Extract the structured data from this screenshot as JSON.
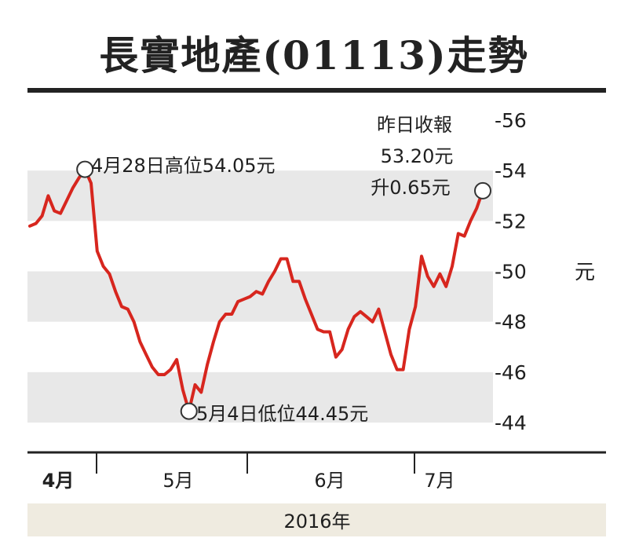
{
  "colors": {
    "line": "#d7261e",
    "band": "#e8e8e8",
    "yearbar": "#efebe0",
    "rule": "#222222"
  },
  "chart_data": {
    "type": "line",
    "title": "長實地產(01113)走勢",
    "ylabel": "元",
    "xlabel": "2016年",
    "ylim": [
      44,
      56
    ],
    "yticks": [
      44,
      46,
      48,
      50,
      52,
      54,
      56
    ],
    "ytick_labels": [
      "-44",
      "-46",
      "-48",
      "-50",
      "-52",
      "-54",
      "-56"
    ],
    "month_labels": [
      "4月",
      "5月",
      "6月",
      "7月"
    ],
    "grid": "alternating horizontal bands",
    "series": [
      {
        "values": [
          51.8,
          51.9,
          52.2,
          53.0,
          52.4,
          52.3,
          52.8,
          53.3,
          53.7,
          54.05,
          53.5,
          50.8,
          50.2,
          49.9,
          49.2,
          48.6,
          48.5,
          48.0,
          47.2,
          46.7,
          46.2,
          45.9,
          45.9,
          46.1,
          46.5,
          45.3,
          44.45,
          45.5,
          45.2,
          46.3,
          47.2,
          48.0,
          48.3,
          48.3,
          48.8,
          48.9,
          49.0,
          49.2,
          49.1,
          49.6,
          50.0,
          50.5,
          50.5,
          49.6,
          49.6,
          48.9,
          48.3,
          47.7,
          47.6,
          47.6,
          46.6,
          46.9,
          47.7,
          48.2,
          48.4,
          48.2,
          48.0,
          48.5,
          47.6,
          46.7,
          46.1,
          46.1,
          47.7,
          48.6,
          50.6,
          49.8,
          49.4,
          49.9,
          49.4,
          50.2,
          51.5,
          51.4,
          52.0,
          52.5,
          53.2
        ]
      }
    ],
    "annotations": [
      {
        "text": "4月28日高位54.05元",
        "value": 54.05
      },
      {
        "text": "5月4日低位44.45元",
        "value": 44.45
      },
      {
        "text": "昨日收報",
        "value": 53.2
      },
      {
        "text": "53.20元"
      },
      {
        "text": "升0.65元"
      }
    ]
  }
}
